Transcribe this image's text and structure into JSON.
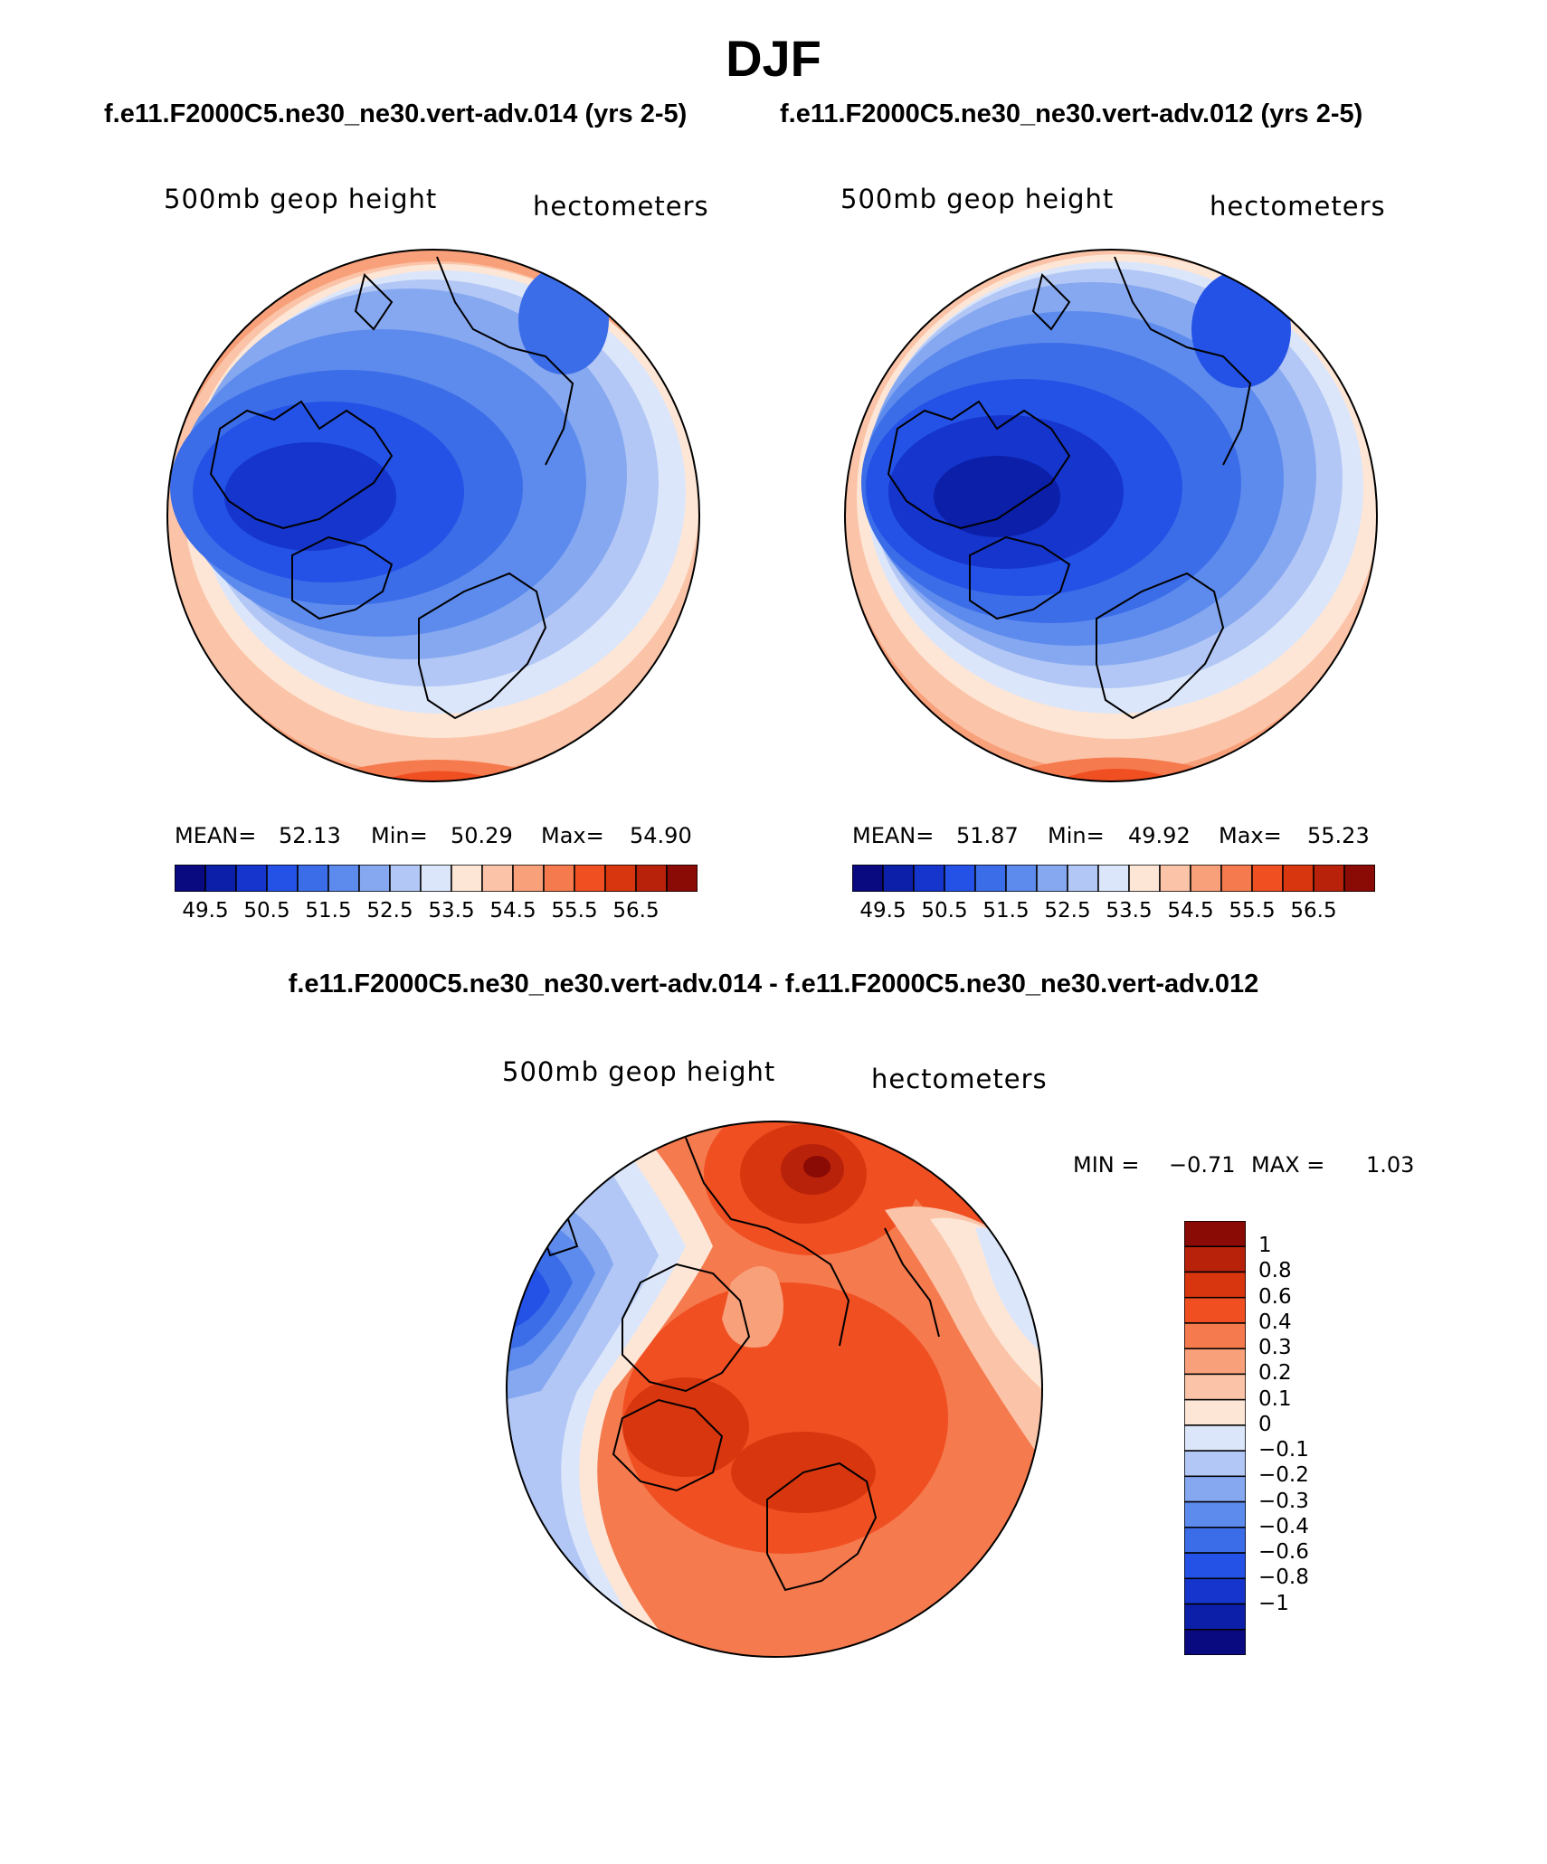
{
  "figure": {
    "season": "DJF",
    "left_case_title": "f.e11.F2000C5.ne30_ne30.vert-adv.014 (yrs 2-5)",
    "right_case_title": "f.e11.F2000C5.ne30_ne30.vert-adv.012 (yrs 2-5)",
    "difference_title": "f.e11.F2000C5.ne30_ne30.vert-adv.014 - f.e11.F2000C5.ne30_ne30.vert-adv.012"
  },
  "panels": [
    {
      "id": "case014",
      "field_label": "500mb geop height",
      "units_label": "hectometers",
      "stats": {
        "mean_label": "MEAN=",
        "mean": "52.13",
        "min_label": "Min=",
        "min": "50.29",
        "max_label": "Max=",
        "max": "54.90"
      }
    },
    {
      "id": "case012",
      "field_label": "500mb geop height",
      "units_label": "hectometers",
      "stats": {
        "mean_label": "MEAN=",
        "mean": "51.87",
        "min_label": "Min=",
        "min": "49.92",
        "max_label": "Max=",
        "max": "55.23"
      }
    },
    {
      "id": "difference",
      "field_label": "500mb geop height",
      "units_label": "hectometers",
      "stats": {
        "min_label": "MIN =",
        "min": "−0.71",
        "max_label": "MAX =",
        "max": "1.03"
      }
    }
  ],
  "colorbars": {
    "absolute": {
      "colors": [
        "#0a0a80",
        "#0b1fa8",
        "#1535cc",
        "#2452e6",
        "#3c6de8",
        "#5d8bed",
        "#86a8f0",
        "#b2c7f5",
        "#dce6fa",
        "#fde6d6",
        "#fbc4a8",
        "#f8a07a",
        "#f57a4e",
        "#f04f22",
        "#d8360f",
        "#b8220a",
        "#8a0a05"
      ],
      "tick_labels": [
        "49.5",
        "50.5",
        "51.5",
        "52.5",
        "53.5",
        "54.5",
        "55.5",
        "56.5"
      ]
    },
    "difference": {
      "colors": [
        "#0a0a80",
        "#0b1fa8",
        "#1535cc",
        "#2452e6",
        "#3c6de8",
        "#5d8bed",
        "#86a8f0",
        "#b2c7f5",
        "#dce6fa",
        "#fde6d6",
        "#fbc4a8",
        "#f8a07a",
        "#f57a4e",
        "#f04f22",
        "#d8360f",
        "#b8220a",
        "#8a0a05"
      ],
      "tick_labels": [
        "1",
        "0.8",
        "0.6",
        "0.4",
        "0.3",
        "0.2",
        "0.1",
        "0",
        "−0.1",
        "−0.2",
        "−0.3",
        "−0.4",
        "−0.6",
        "−0.8",
        "−1"
      ]
    }
  },
  "map_palette": {
    "deep_blue": "#1535cc",
    "mid_blue": "#2f5fe6",
    "light_blue": "#86a8f0",
    "pale_blue": "#dce6fa",
    "pale_red": "#fde6d6",
    "light_red": "#f8a07a",
    "mid_red": "#f04f22",
    "deep_red": "#b8220a",
    "coast": "#000000"
  }
}
